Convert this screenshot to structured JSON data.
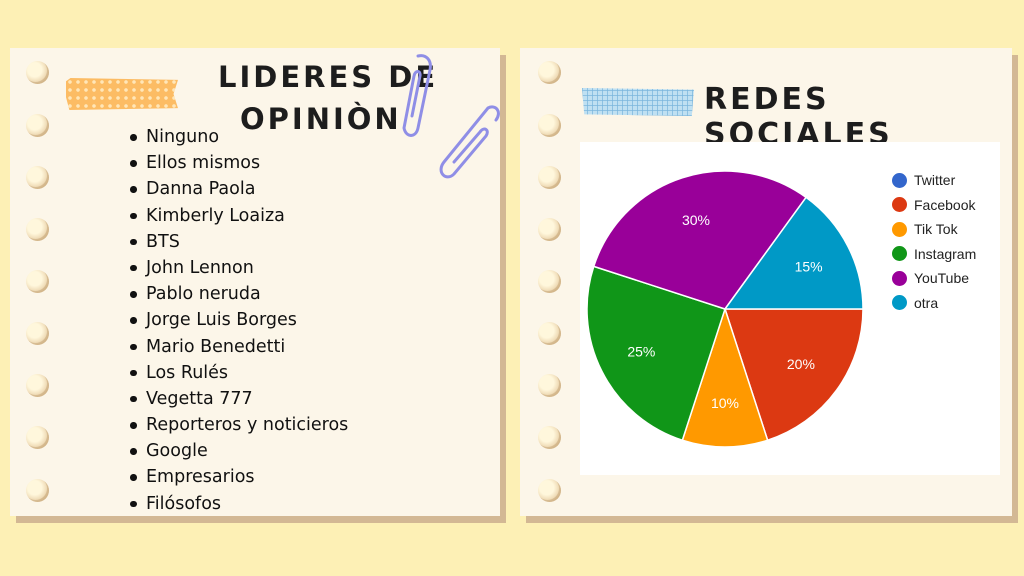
{
  "left_card": {
    "title_line1": "LIDERES DE",
    "title_line2": "OPINIÒN",
    "items": [
      "Ninguno",
      "Ellos mismos",
      "Danna Paola",
      "Kimberly Loaiza",
      "BTS",
      "John Lennon",
      "Pablo neruda",
      "Jorge Luis Borges",
      "Mario Benedetti",
      "Los Rulés",
      "Vegetta 777",
      "Reporteros y noticieros",
      "Google",
      "Empresarios",
      "Filósofos"
    ]
  },
  "right_card": {
    "title": "REDES SOCIALES"
  },
  "chart_data": {
    "type": "pie",
    "title": "",
    "legend_position": "right",
    "slices": [
      {
        "label": "Twitter",
        "value": 0,
        "display": "",
        "color": "#3366cc"
      },
      {
        "label": "Facebook",
        "value": 20,
        "display": "20%",
        "color": "#dc3912"
      },
      {
        "label": "Tik Tok",
        "value": 10,
        "display": "10%",
        "color": "#ff9900"
      },
      {
        "label": "Instagram",
        "value": 25,
        "display": "25%",
        "color": "#109618"
      },
      {
        "label": "YouTube",
        "value": 30,
        "display": "30%",
        "color": "#990099"
      },
      {
        "label": "otra",
        "value": 15,
        "display": "15%",
        "color": "#0099c6"
      }
    ]
  },
  "decor": {
    "ring_color": "#e8cfa6",
    "left_tape_color": "#fcbc64",
    "right_tape_color": "#bfe0f2",
    "paperclip_color": "#8f8ee6",
    "background_color": "#fdf0b5"
  }
}
